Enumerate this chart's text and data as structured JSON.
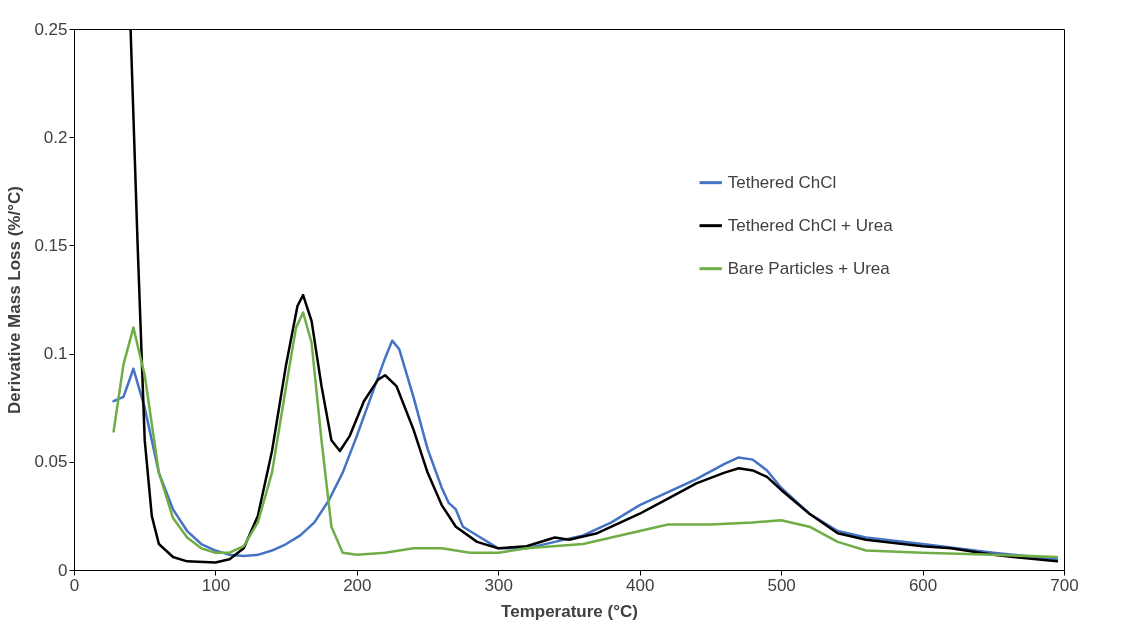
{
  "chart_data": {
    "type": "line",
    "xlabel": "Temperature (°C)",
    "ylabel": "Derivative Mass Loss (%/°C)",
    "xlim": [
      0,
      700
    ],
    "xticks": [
      0,
      100,
      200,
      300,
      400,
      500,
      600,
      700
    ],
    "ylim": [
      0,
      0.25
    ],
    "yticks": [
      0,
      0.05,
      0.1,
      0.15,
      0.2,
      0.25
    ],
    "grid": false,
    "legend": "right",
    "marker": "none",
    "line_style": "solid",
    "series": [
      {
        "name": "Tethered ChCl",
        "color": "#4472c4",
        "x": [
          28,
          35,
          42,
          50,
          60,
          70,
          80,
          90,
          100,
          110,
          120,
          130,
          140,
          150,
          160,
          170,
          180,
          190,
          200,
          210,
          220,
          225,
          230,
          240,
          250,
          260,
          265,
          270,
          275,
          290,
          300,
          320,
          340,
          360,
          380,
          400,
          420,
          440,
          460,
          470,
          480,
          490,
          500,
          520,
          540,
          560,
          600,
          650,
          695
        ],
        "values": [
          0.078,
          0.08,
          0.093,
          0.075,
          0.045,
          0.028,
          0.018,
          0.012,
          0.009,
          0.007,
          0.0065,
          0.007,
          0.009,
          0.012,
          0.016,
          0.022,
          0.032,
          0.045,
          0.062,
          0.08,
          0.098,
          0.106,
          0.102,
          0.08,
          0.056,
          0.038,
          0.031,
          0.028,
          0.02,
          0.014,
          0.01,
          0.01,
          0.013,
          0.016,
          0.022,
          0.03,
          0.036,
          0.042,
          0.049,
          0.052,
          0.051,
          0.046,
          0.038,
          0.026,
          0.018,
          0.015,
          0.012,
          0.008,
          0.005
        ]
      },
      {
        "name": "Tethered ChCl + Urea",
        "color": "#000000",
        "x": [
          40,
          45,
          50,
          55,
          60,
          70,
          80,
          100,
          110,
          120,
          130,
          140,
          150,
          158,
          162,
          168,
          175,
          182,
          188,
          195,
          205,
          215,
          220,
          228,
          240,
          250,
          260,
          270,
          285,
          300,
          320,
          340,
          350,
          370,
          400,
          420,
          440,
          460,
          470,
          480,
          490,
          500,
          520,
          540,
          560,
          600,
          620,
          650,
          695
        ],
        "values": [
          0.25,
          0.15,
          0.06,
          0.025,
          0.012,
          0.006,
          0.004,
          0.0035,
          0.005,
          0.01,
          0.025,
          0.055,
          0.095,
          0.122,
          0.127,
          0.115,
          0.085,
          0.06,
          0.055,
          0.062,
          0.078,
          0.088,
          0.09,
          0.085,
          0.065,
          0.045,
          0.03,
          0.02,
          0.013,
          0.01,
          0.011,
          0.015,
          0.014,
          0.017,
          0.026,
          0.033,
          0.04,
          0.045,
          0.047,
          0.046,
          0.043,
          0.037,
          0.026,
          0.017,
          0.014,
          0.011,
          0.01,
          0.007,
          0.004
        ]
      },
      {
        "name": "Bare Particles + Urea",
        "color": "#70ad47",
        "x": [
          28,
          35,
          42,
          50,
          60,
          70,
          80,
          90,
          100,
          110,
          120,
          130,
          140,
          150,
          157,
          162,
          168,
          175,
          182,
          190,
          200,
          220,
          240,
          260,
          280,
          300,
          320,
          360,
          400,
          420,
          450,
          480,
          500,
          520,
          540,
          560,
          600,
          650,
          695
        ],
        "values": [
          0.064,
          0.095,
          0.112,
          0.09,
          0.045,
          0.024,
          0.015,
          0.01,
          0.008,
          0.008,
          0.011,
          0.022,
          0.045,
          0.085,
          0.112,
          0.119,
          0.105,
          0.06,
          0.02,
          0.008,
          0.007,
          0.008,
          0.01,
          0.01,
          0.008,
          0.008,
          0.01,
          0.012,
          0.018,
          0.021,
          0.021,
          0.022,
          0.023,
          0.02,
          0.013,
          0.009,
          0.008,
          0.007,
          0.006
        ]
      }
    ]
  }
}
